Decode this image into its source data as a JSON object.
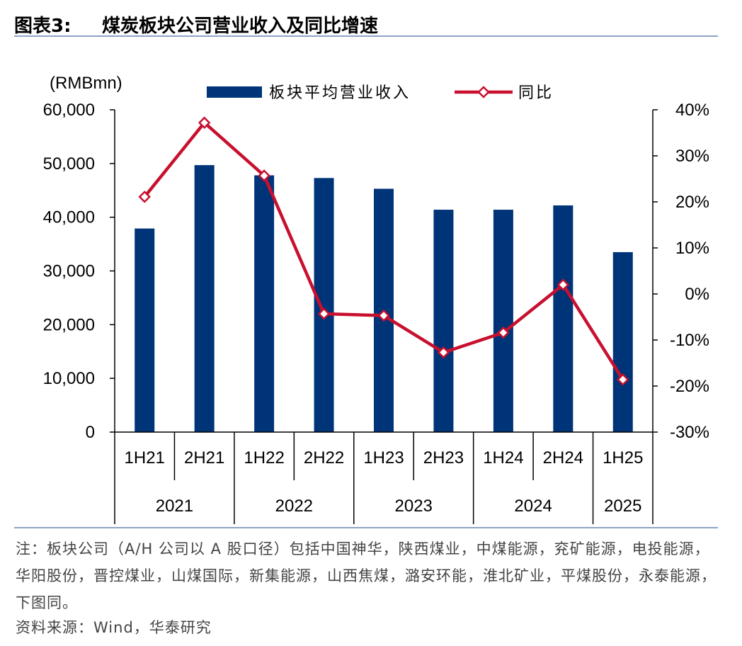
{
  "header": {
    "figure_label": "图表3:",
    "title": "煤炭板块公司营业收入及同比增速"
  },
  "chart_data": {
    "type": "bar+line",
    "unit_label": "(RMBmn)",
    "categories": [
      "1H21",
      "2H21",
      "1H22",
      "2H22",
      "1H23",
      "2H23",
      "1H24",
      "2H24",
      "1H25"
    ],
    "year_groups": [
      {
        "label": "2021",
        "span": 2
      },
      {
        "label": "2022",
        "span": 2
      },
      {
        "label": "2023",
        "span": 2
      },
      {
        "label": "2024",
        "span": 2
      },
      {
        "label": "2025",
        "span": 1
      }
    ],
    "series": [
      {
        "name": "板块平均营业收入",
        "type": "bar",
        "axis": "left",
        "color": "#003478",
        "values": [
          37900,
          49700,
          47800,
          47300,
          45300,
          41400,
          41400,
          42200,
          33500
        ]
      },
      {
        "name": "同比",
        "type": "line",
        "axis": "right",
        "color": "#c8102e",
        "values": [
          21.1,
          37.2,
          25.7,
          -4.3,
          -4.7,
          -12.7,
          -8.4,
          2.0,
          -18.6
        ]
      }
    ],
    "left_axis": {
      "ylim": [
        0,
        60000
      ],
      "ticks": [
        0,
        10000,
        20000,
        30000,
        40000,
        50000,
        60000
      ],
      "tick_labels": [
        "0",
        "10,000",
        "20,000",
        "30,000",
        "40,000",
        "50,000",
        "60,000"
      ]
    },
    "right_axis": {
      "ylim": [
        -30,
        40
      ],
      "ticks": [
        -30,
        -20,
        -10,
        0,
        10,
        20,
        30,
        40
      ],
      "tick_labels": [
        "-30%",
        "-20%",
        "-10%",
        "0%",
        "10%",
        "20%",
        "30%",
        "40%"
      ]
    },
    "legend_position": "top"
  },
  "note": "注：板块公司（A/H 公司以 A 股口径）包括中国神华，陕西煤业，中煤能源，兖矿能源，电投能源，华阳股份，晋控煤业，山煤国际，新集能源，山西焦煤，潞安环能，淮北矿业，平煤股份，永泰能源，下图同。",
  "source": "资料来源：Wind，华泰研究"
}
